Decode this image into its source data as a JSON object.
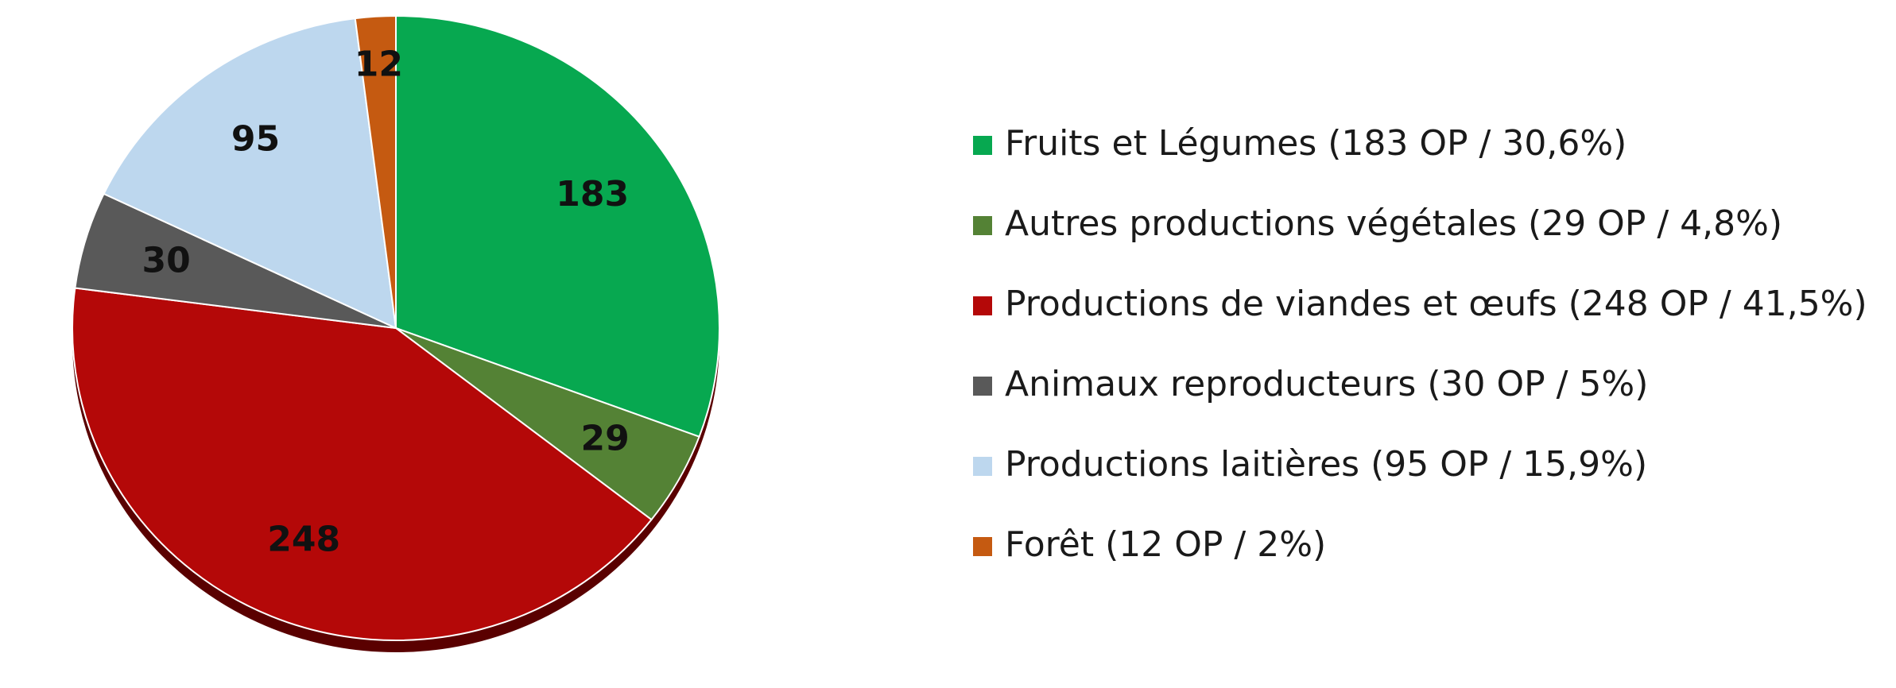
{
  "chart_data": {
    "type": "pie",
    "categories": [
      "Fruits et Légumes (183 OP / 30,6%)",
      "Autres productions végétales (29 OP / 4,8%)",
      "Productions de viandes et œufs (248 OP / 41,5%)",
      "Animaux reproducteurs (30 OP / 5%)",
      "Productions laitières (95 OP / 15,9%)",
      "Forêt (12 OP / 2%)"
    ],
    "values": [
      183,
      29,
      248,
      30,
      95,
      12
    ],
    "colors": [
      "#07a850",
      "#548235",
      "#b40808",
      "#595959",
      "#bdd7ee",
      "#c55a11"
    ],
    "legend": "right"
  }
}
